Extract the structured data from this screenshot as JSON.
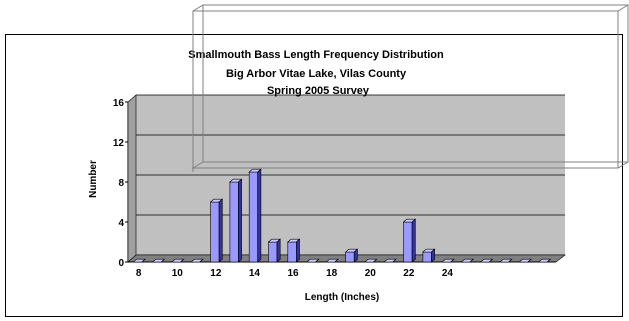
{
  "chart_data": {
    "type": "bar",
    "title": "Smallmouth Bass Length Frequency Distribution",
    "subtitle_lines": [
      "Big Arbor Vitae Lake, Vilas County",
      "Spring 2005 Survey"
    ],
    "xlabel": "Length (Inches)",
    "ylabel": "Number",
    "ylim": [
      0,
      16
    ],
    "y_ticks": [
      "0",
      "4",
      "8",
      "12",
      "16"
    ],
    "x_tick_labels": [
      "8",
      "10",
      "12",
      "14",
      "16",
      "18",
      "20",
      "22",
      "24"
    ],
    "x": [
      8,
      9,
      10,
      11,
      12,
      13,
      14,
      15,
      16,
      17,
      18,
      19,
      20,
      21,
      22,
      23,
      24,
      25,
      26,
      27,
      28,
      29
    ],
    "values": [
      0,
      0,
      0,
      0,
      6,
      8,
      9,
      2,
      2,
      0,
      0,
      1,
      0,
      0,
      4,
      1,
      0,
      0,
      0,
      0,
      0,
      0
    ],
    "grid": true,
    "colors": {
      "bar_front": "#9999ff",
      "bar_side": "#333399",
      "bar_top": "#ccccff",
      "floor": "#c0c0c0",
      "grid": "#000000"
    }
  }
}
